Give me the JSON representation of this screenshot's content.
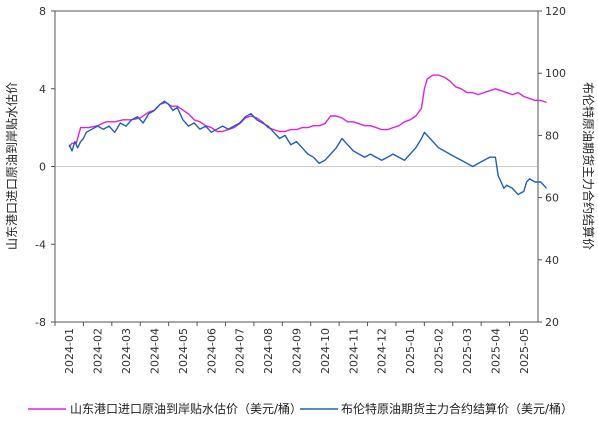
{
  "chart_data": {
    "type": "line",
    "x_ticks": [
      "2024-01",
      "2024-02",
      "2024-03",
      "2024-04",
      "2024-05",
      "2024-06",
      "2024-07",
      "2024-08",
      "2024-09",
      "2024-10",
      "2024-11",
      "2024-12",
      "2025-01",
      "2025-02",
      "2025-03",
      "2025-04",
      "2025-05"
    ],
    "y_left": {
      "label": "山东港口进口原油到岸贴水估价",
      "range": [
        -8,
        8
      ],
      "ticks": [
        "-8",
        "-4",
        "0",
        "4",
        "8"
      ]
    },
    "y_right": {
      "label": "布伦特原油期货主力合约结算价",
      "range": [
        20,
        120
      ],
      "ticks": [
        "20",
        "40",
        "60",
        "80",
        "100",
        "120"
      ]
    },
    "legend_position": "bottom",
    "grid": false,
    "series": [
      {
        "name": "山东港口进口原油到岸贴水估价（美元/桶）",
        "axis": "left",
        "color": "#e020e0",
        "points": [
          [
            0.0,
            1.0
          ],
          [
            0.1,
            1.2
          ],
          [
            0.25,
            1.2
          ],
          [
            0.4,
            2.0
          ],
          [
            0.7,
            2.0
          ],
          [
            1.0,
            2.1
          ],
          [
            1.3,
            2.3
          ],
          [
            1.6,
            2.3
          ],
          [
            1.9,
            2.4
          ],
          [
            2.2,
            2.4
          ],
          [
            2.5,
            2.5
          ],
          [
            2.8,
            2.8
          ],
          [
            3.0,
            2.9
          ],
          [
            3.2,
            3.2
          ],
          [
            3.4,
            3.3
          ],
          [
            3.6,
            3.1
          ],
          [
            3.8,
            3.1
          ],
          [
            4.0,
            2.9
          ],
          [
            4.2,
            2.7
          ],
          [
            4.4,
            2.4
          ],
          [
            4.6,
            2.3
          ],
          [
            4.8,
            2.1
          ],
          [
            5.0,
            2.0
          ],
          [
            5.2,
            1.8
          ],
          [
            5.4,
            1.8
          ],
          [
            5.6,
            1.9
          ],
          [
            5.8,
            2.0
          ],
          [
            6.0,
            2.2
          ],
          [
            6.2,
            2.5
          ],
          [
            6.4,
            2.6
          ],
          [
            6.6,
            2.5
          ],
          [
            6.8,
            2.3
          ],
          [
            7.0,
            2.0
          ],
          [
            7.2,
            1.9
          ],
          [
            7.4,
            1.8
          ],
          [
            7.6,
            1.8
          ],
          [
            7.8,
            1.9
          ],
          [
            8.0,
            1.9
          ],
          [
            8.2,
            2.0
          ],
          [
            8.4,
            2.0
          ],
          [
            8.6,
            2.1
          ],
          [
            8.8,
            2.1
          ],
          [
            9.0,
            2.2
          ],
          [
            9.2,
            2.6
          ],
          [
            9.4,
            2.6
          ],
          [
            9.6,
            2.5
          ],
          [
            9.8,
            2.3
          ],
          [
            10.0,
            2.3
          ],
          [
            10.2,
            2.2
          ],
          [
            10.4,
            2.1
          ],
          [
            10.6,
            2.1
          ],
          [
            10.8,
            2.0
          ],
          [
            11.0,
            1.9
          ],
          [
            11.2,
            1.9
          ],
          [
            11.4,
            2.0
          ],
          [
            11.6,
            2.1
          ],
          [
            11.8,
            2.3
          ],
          [
            12.0,
            2.4
          ],
          [
            12.2,
            2.6
          ],
          [
            12.4,
            3.0
          ],
          [
            12.5,
            4.0
          ],
          [
            12.6,
            4.5
          ],
          [
            12.8,
            4.7
          ],
          [
            13.0,
            4.7
          ],
          [
            13.2,
            4.6
          ],
          [
            13.4,
            4.4
          ],
          [
            13.6,
            4.1
          ],
          [
            13.8,
            4.0
          ],
          [
            14.0,
            3.8
          ],
          [
            14.2,
            3.8
          ],
          [
            14.4,
            3.7
          ],
          [
            14.6,
            3.8
          ],
          [
            14.8,
            3.9
          ],
          [
            15.0,
            4.0
          ],
          [
            15.2,
            3.9
          ],
          [
            15.4,
            3.8
          ],
          [
            15.6,
            3.7
          ],
          [
            15.8,
            3.8
          ],
          [
            16.0,
            3.6
          ],
          [
            16.2,
            3.5
          ],
          [
            16.4,
            3.4
          ],
          [
            16.6,
            3.4
          ],
          [
            16.8,
            3.3
          ]
        ]
      },
      {
        "name": "布伦特原油期货主力合约结算价（美元/桶）",
        "axis": "right",
        "color": "#1f5fc0",
        "points": [
          [
            0.0,
            77
          ],
          [
            0.1,
            75
          ],
          [
            0.2,
            78
          ],
          [
            0.3,
            76
          ],
          [
            0.4,
            78
          ],
          [
            0.5,
            79
          ],
          [
            0.6,
            81
          ],
          [
            0.8,
            82
          ],
          [
            1.0,
            83
          ],
          [
            1.2,
            82
          ],
          [
            1.4,
            83
          ],
          [
            1.6,
            81
          ],
          [
            1.8,
            84
          ],
          [
            2.0,
            83
          ],
          [
            2.2,
            85
          ],
          [
            2.4,
            86
          ],
          [
            2.6,
            84
          ],
          [
            2.8,
            87
          ],
          [
            3.0,
            88
          ],
          [
            3.2,
            90
          ],
          [
            3.35,
            91
          ],
          [
            3.5,
            90
          ],
          [
            3.65,
            88
          ],
          [
            3.8,
            89
          ],
          [
            4.0,
            85
          ],
          [
            4.2,
            83
          ],
          [
            4.4,
            84
          ],
          [
            4.6,
            82
          ],
          [
            4.8,
            83
          ],
          [
            5.0,
            81
          ],
          [
            5.2,
            82
          ],
          [
            5.4,
            83
          ],
          [
            5.6,
            82
          ],
          [
            5.8,
            83
          ],
          [
            6.0,
            84
          ],
          [
            6.2,
            86
          ],
          [
            6.4,
            87
          ],
          [
            6.6,
            85
          ],
          [
            6.8,
            84
          ],
          [
            7.0,
            83
          ],
          [
            7.2,
            81
          ],
          [
            7.4,
            79
          ],
          [
            7.6,
            80
          ],
          [
            7.8,
            77
          ],
          [
            8.0,
            78
          ],
          [
            8.2,
            76
          ],
          [
            8.4,
            74
          ],
          [
            8.6,
            73
          ],
          [
            8.8,
            71
          ],
          [
            9.0,
            72
          ],
          [
            9.2,
            74
          ],
          [
            9.4,
            76
          ],
          [
            9.6,
            79
          ],
          [
            9.8,
            77
          ],
          [
            10.0,
            75
          ],
          [
            10.2,
            74
          ],
          [
            10.4,
            73
          ],
          [
            10.6,
            74
          ],
          [
            10.8,
            73
          ],
          [
            11.0,
            72
          ],
          [
            11.2,
            73
          ],
          [
            11.4,
            74
          ],
          [
            11.6,
            73
          ],
          [
            11.8,
            72
          ],
          [
            12.0,
            74
          ],
          [
            12.2,
            76
          ],
          [
            12.4,
            79
          ],
          [
            12.5,
            81
          ],
          [
            12.6,
            80
          ],
          [
            12.8,
            78
          ],
          [
            13.0,
            76
          ],
          [
            13.2,
            75
          ],
          [
            13.4,
            74
          ],
          [
            13.6,
            73
          ],
          [
            13.8,
            72
          ],
          [
            14.0,
            71
          ],
          [
            14.2,
            70
          ],
          [
            14.4,
            71
          ],
          [
            14.6,
            72
          ],
          [
            14.8,
            73
          ],
          [
            15.0,
            73
          ],
          [
            15.1,
            67
          ],
          [
            15.2,
            65
          ],
          [
            15.3,
            63
          ],
          [
            15.4,
            64
          ],
          [
            15.6,
            63
          ],
          [
            15.8,
            61
          ],
          [
            16.0,
            62
          ],
          [
            16.1,
            65
          ],
          [
            16.2,
            66
          ],
          [
            16.4,
            65
          ],
          [
            16.6,
            65
          ],
          [
            16.8,
            63
          ]
        ]
      }
    ]
  }
}
